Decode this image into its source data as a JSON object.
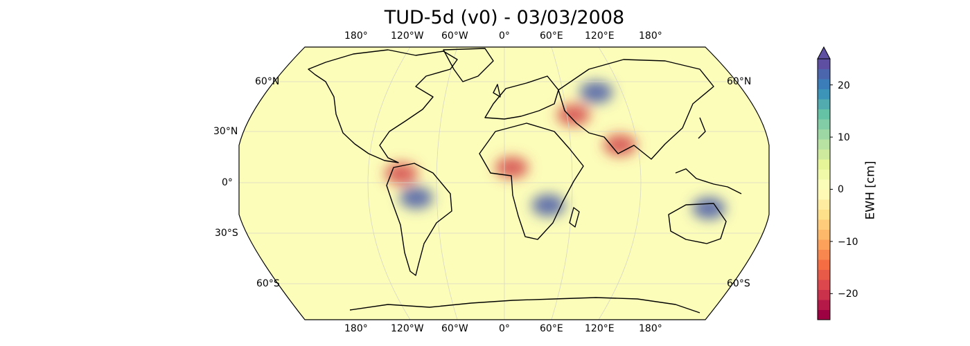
{
  "title": "TUD-5d (v0) - 03/03/2008",
  "map": {
    "projection": "Robinson",
    "background_color": "#fcfdb9",
    "coastline_color": "#000000",
    "lon_labels_top": [
      "180°",
      "120°W",
      "60°W",
      "0°",
      "60°E",
      "120°E",
      "180°"
    ],
    "lon_labels_bottom": [
      "180°",
      "120°W",
      "60°W",
      "0°",
      "60°E",
      "120°E",
      "180°"
    ],
    "lat_labels_left": [
      "60°N",
      "30°N",
      "0°",
      "30°S",
      "60°S"
    ],
    "lat_labels_right": [
      "60°N",
      "60°S"
    ],
    "gridlines": true
  },
  "anomalies": [
    {
      "region": "amazon",
      "lon": -60,
      "lat": -10,
      "sign": "positive"
    },
    {
      "region": "northern south america",
      "lon": -70,
      "lat": 6,
      "sign": "negative"
    },
    {
      "region": "zambezi",
      "lon": 30,
      "lat": -15,
      "sign": "positive"
    },
    {
      "region": "sahel",
      "lon": 5,
      "lat": 10,
      "sign": "negative"
    },
    {
      "region": "northern australia",
      "lon": 140,
      "lat": -17,
      "sign": "positive"
    },
    {
      "region": "india",
      "lon": 80,
      "lat": 25,
      "sign": "negative"
    },
    {
      "region": "caspian",
      "lon": 50,
      "lat": 45,
      "sign": "negative"
    },
    {
      "region": "western siberia",
      "lon": 70,
      "lat": 60,
      "sign": "positive"
    }
  ],
  "colorbar": {
    "label": "EWH [cm]",
    "range": [
      -25,
      25
    ],
    "ticks": [
      "20",
      "10",
      "0",
      "−10",
      "−20"
    ],
    "tick_values": [
      20,
      10,
      0,
      -10,
      -20
    ],
    "extend": "max",
    "colormap": "Spectral",
    "colors": [
      "#9e0142",
      "#d53e4f",
      "#f46d43",
      "#fdae61",
      "#fee08b",
      "#ffffbf",
      "#e6f598",
      "#abdda4",
      "#66c2a5",
      "#3288bd",
      "#5e4fa2"
    ]
  }
}
